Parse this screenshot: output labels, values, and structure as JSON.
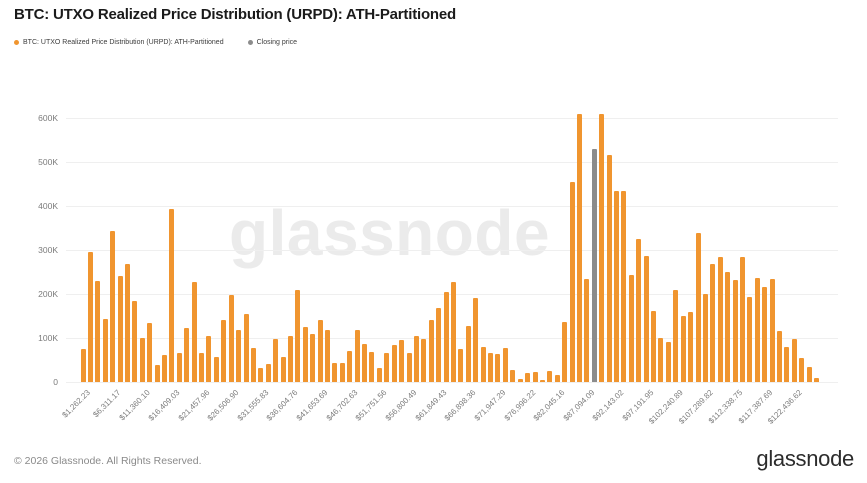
{
  "header": {
    "title": "BTC: UTXO Realized Price Distribution (URPD): ATH-Partitioned"
  },
  "legend": [
    {
      "label": "BTC: UTXO Realized Price Distribution (URPD): ATH-Partitioned",
      "color": "#f0952f",
      "icon": "series-dot-icon"
    },
    {
      "label": "Closing price",
      "color": "#8c8c8c",
      "icon": "closing-price-dot-icon"
    }
  ],
  "watermark": {
    "text": "glassnode"
  },
  "footer": {
    "copyright": "© 2026 Glassnode. All Rights Reserved.",
    "brand": "glassnode"
  },
  "chart_data": {
    "type": "bar",
    "title": "BTC: UTXO Realized Price Distribution (URPD): ATH-Partitioned",
    "series_name": "BTC: UTXO Realized Price Distribution (URPD): ATH-Partitioned",
    "closing_price_series": "Closing price",
    "xlabel": "",
    "ylabel": "",
    "grid": "horizontal",
    "legend_position": "top-left",
    "ylim": [
      0,
      620000
    ],
    "yticks": [
      0,
      100000,
      200000,
      300000,
      400000,
      500000,
      600000
    ],
    "ytick_labels": [
      "0",
      "100K",
      "200K",
      "300K",
      "400K",
      "500K",
      "600K"
    ],
    "x_tick_every": 4,
    "x_tick_start": 0,
    "x_tick_labels": [
      "$1,262.23",
      "$6,311.17",
      "$11,360.10",
      "$16,409.03",
      "$21,457.96",
      "$26,506.90",
      "$31,555.83",
      "$36,604.76",
      "$41,653.69",
      "$46,702.63",
      "$51,751.56",
      "$56,800.49",
      "$61,849.43",
      "$66,898.36",
      "$71,947.29",
      "$76,996.22",
      "$82,045.16",
      "$87,094.09",
      "$92,143.02",
      "$97,191.95",
      "$102,240.89",
      "$107,289.82",
      "$112,338.75",
      "$117,387.69",
      "$122,436.62"
    ],
    "bar_color": "#f0952f",
    "closing_price_color": "#8c8c8c",
    "closing_price_index": 69,
    "values": [
      75000,
      295000,
      230000,
      143000,
      343000,
      242000,
      268000,
      183000,
      101000,
      133000,
      38000,
      62000,
      394000,
      65000,
      122000,
      228000,
      65000,
      104000,
      57000,
      141000,
      198000,
      119000,
      155000,
      77000,
      32000,
      40000,
      98000,
      56000,
      104000,
      209000,
      126000,
      109000,
      141000,
      118000,
      44000,
      44000,
      70000,
      119000,
      86000,
      68000,
      32000,
      66000,
      85000,
      96000,
      66000,
      104000,
      98000,
      141000,
      168000,
      205000,
      228000,
      76000,
      128000,
      190000,
      79000,
      66000,
      63000,
      78000,
      27000,
      6000,
      20000,
      22000,
      5000,
      25000,
      15000,
      137000,
      455000,
      610000,
      235000,
      530000,
      608000,
      515000,
      435000,
      435000,
      244000,
      325000,
      287000,
      162000,
      99000,
      90000,
      210000,
      150000,
      158000,
      338000,
      201000,
      268000,
      283000,
      250000,
      231000,
      283000,
      193000,
      237000,
      215000,
      233000,
      117000,
      80000,
      98000,
      55000,
      35000,
      10000
    ]
  }
}
